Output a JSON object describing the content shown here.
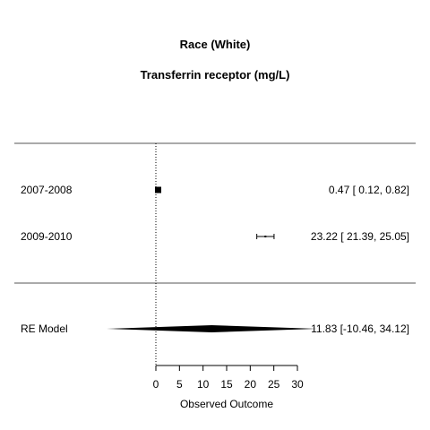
{
  "chart_data": {
    "type": "forest",
    "title": "Race (White)",
    "subtitle": "Transferrin receptor (mg/L)",
    "xlabel": "Observed Outcome",
    "xlim": [
      0,
      30
    ],
    "xticks": [
      0,
      5,
      10,
      15,
      20,
      25,
      30
    ],
    "reference_line": 0,
    "studies": [
      {
        "label": "2007-2008",
        "estimate": 0.47,
        "ci": [
          0.12,
          0.82
        ],
        "text": "0.47 [  0.12,  0.82]"
      },
      {
        "label": "2009-2010",
        "estimate": 23.22,
        "ci": [
          21.39,
          25.05
        ],
        "text": "23.22 [ 21.39, 25.05]"
      }
    ],
    "summary": {
      "label": "RE Model",
      "estimate": 11.83,
      "ci": [
        -10.46,
        34.12
      ],
      "text": "11.83 [-10.46, 34.12]"
    }
  }
}
